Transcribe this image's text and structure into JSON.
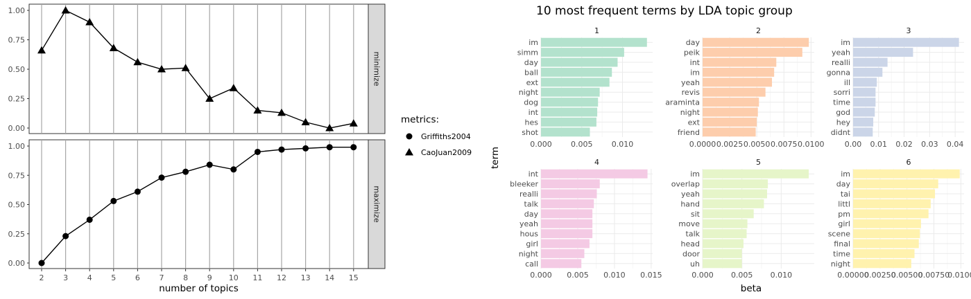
{
  "chart_data": [
    {
      "type": "line",
      "xlabel": "number of topics",
      "x": [
        2,
        3,
        4,
        5,
        6,
        7,
        8,
        9,
        10,
        11,
        12,
        13,
        14,
        15
      ],
      "x_ticks": [
        2,
        3,
        4,
        5,
        6,
        7,
        8,
        9,
        10,
        11,
        12,
        13,
        14,
        15
      ],
      "y_ticks": [
        "0.00",
        "0.25",
        "0.50",
        "0.75",
        "1.00"
      ],
      "ylim": [
        0,
        1
      ],
      "grid": true,
      "legend": {
        "title": "metrics:",
        "position": "right",
        "items": [
          {
            "name": "Griffiths2004",
            "marker": "circle"
          },
          {
            "name": "CaoJuan2009",
            "marker": "triangle"
          }
        ]
      },
      "facets": [
        {
          "strip": "minimize",
          "series": [
            {
              "name": "CaoJuan2009",
              "marker": "triangle",
              "values": [
                0.66,
                1.0,
                0.9,
                0.68,
                0.56,
                0.5,
                0.51,
                0.25,
                0.34,
                0.15,
                0.13,
                0.05,
                0.0,
                0.04
              ]
            }
          ]
        },
        {
          "strip": "maximize",
          "series": [
            {
              "name": "Griffiths2004",
              "marker": "circle",
              "values": [
                0.0,
                0.23,
                0.37,
                0.53,
                0.61,
                0.73,
                0.78,
                0.84,
                0.8,
                0.95,
                0.97,
                0.98,
                0.99,
                0.99
              ]
            }
          ]
        }
      ]
    },
    {
      "type": "bar",
      "orientation": "horizontal",
      "title": "10 most frequent terms by LDA topic group",
      "xlabel": "beta",
      "ylabel": "term",
      "grid": true,
      "facets": [
        {
          "strip": "1",
          "color": "#b3e2cd",
          "xlim": [
            0,
            0.0137
          ],
          "x_ticks": [
            "0.000",
            "0.005",
            "0.010"
          ],
          "x_tick_values": [
            0,
            0.005,
            0.01
          ],
          "terms": [
            "im",
            "simm",
            "day",
            "ball",
            "ext",
            "night",
            "dog",
            "int",
            "hes",
            "shot"
          ],
          "values": [
            0.013,
            0.0102,
            0.0094,
            0.0087,
            0.0084,
            0.0072,
            0.007,
            0.0069,
            0.0068,
            0.006
          ]
        },
        {
          "strip": "2",
          "color": "#fdcdac",
          "xlim": [
            0,
            0.0103
          ],
          "x_ticks": [
            "0.0000",
            "0.0025",
            "0.0050",
            "0.0075",
            "0.0100"
          ],
          "x_tick_values": [
            0,
            0.0025,
            0.005,
            0.0075,
            0.01
          ],
          "terms": [
            "day",
            "peik",
            "int",
            "im",
            "yeah",
            "revis",
            "araminta",
            "night",
            "ext",
            "friend"
          ],
          "values": [
            0.0098,
            0.0092,
            0.0068,
            0.0066,
            0.0064,
            0.0058,
            0.0052,
            0.0051,
            0.005,
            0.0049
          ]
        },
        {
          "strip": "3",
          "color": "#cbd5e8",
          "xlim": [
            0,
            0.0435
          ],
          "x_ticks": [
            "0.00",
            "0.01",
            "0.02",
            "0.03",
            "0.04"
          ],
          "x_tick_values": [
            0,
            0.01,
            0.02,
            0.03,
            0.04
          ],
          "terms": [
            "im",
            "yeah",
            "realli",
            "gonna",
            "ill",
            "sorri",
            "time",
            "god",
            "hey",
            "didnt"
          ],
          "values": [
            0.0415,
            0.0235,
            0.0135,
            0.0115,
            0.0093,
            0.0088,
            0.0088,
            0.0085,
            0.0079,
            0.0077
          ]
        },
        {
          "strip": "4",
          "color": "#f4cae4",
          "xlim": [
            0,
            0.0152
          ],
          "x_ticks": [
            "0.000",
            "0.005",
            "0.010",
            "0.015"
          ],
          "x_tick_values": [
            0,
            0.005,
            0.01,
            0.015
          ],
          "terms": [
            "int",
            "bleeker",
            "realli",
            "talk",
            "day",
            "yeah",
            "hous",
            "girl",
            "night",
            "call"
          ],
          "values": [
            0.0145,
            0.008,
            0.0076,
            0.0072,
            0.007,
            0.007,
            0.007,
            0.0066,
            0.0059,
            0.0055
          ]
        },
        {
          "strip": "5",
          "color": "#e6f5c9",
          "xlim": [
            0,
            0.0142
          ],
          "x_ticks": [
            "0.000",
            "0.005",
            "0.010"
          ],
          "x_tick_values": [
            0,
            0.005,
            0.01
          ],
          "terms": [
            "im",
            "overlap",
            "yeah",
            "hand",
            "sit",
            "move",
            "talk",
            "head",
            "door",
            "uh"
          ],
          "values": [
            0.0135,
            0.0083,
            0.0082,
            0.0078,
            0.0065,
            0.0057,
            0.0056,
            0.0052,
            0.005,
            0.005
          ]
        },
        {
          "strip": "6",
          "color": "#fff2ae",
          "xlim": [
            0,
            0.0103
          ],
          "x_ticks": [
            "0.00000",
            "0.00250",
            "0.00500",
            "0.00750",
            "0.0100"
          ],
          "x_tick_values": [
            0,
            0.0025,
            0.005,
            0.0075,
            0.01
          ],
          "terms": [
            "im",
            "day",
            "tai",
            "littl",
            "pm",
            "girl",
            "scene",
            "final",
            "time",
            "night"
          ],
          "values": [
            0.0099,
            0.0079,
            0.0076,
            0.0072,
            0.007,
            0.0063,
            0.0062,
            0.0061,
            0.0057,
            0.0054
          ]
        }
      ]
    }
  ]
}
